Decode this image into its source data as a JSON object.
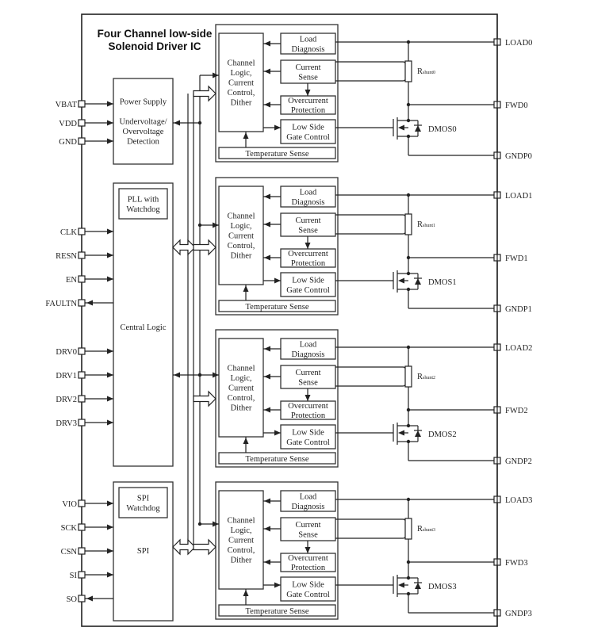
{
  "title": [
    "Four Channel low-side",
    "Solenoid Driver IC"
  ],
  "blocks": {
    "power_supply": [
      "Power Supply",
      "",
      "Undervoltage/",
      "Overvoltage",
      "Detection"
    ],
    "pll": [
      "PLL with",
      "Watchdog"
    ],
    "central_logic": "Central Logic",
    "spi_watchdog": [
      "SPI",
      "Watchdog"
    ],
    "spi": "SPI"
  },
  "left_pins": [
    {
      "label": "VBAT",
      "dir": "in"
    },
    {
      "label": "VDD",
      "dir": "in"
    },
    {
      "label": "GND",
      "dir": "in"
    },
    {
      "label": "CLK",
      "dir": "in"
    },
    {
      "label": "RESN",
      "dir": "in"
    },
    {
      "label": "EN",
      "dir": "in"
    },
    {
      "label": "FAULTN",
      "dir": "out"
    },
    {
      "label": "DRV0",
      "dir": "in"
    },
    {
      "label": "DRV1",
      "dir": "in"
    },
    {
      "label": "DRV2",
      "dir": "in"
    },
    {
      "label": "DRV3",
      "dir": "in"
    },
    {
      "label": "VIO",
      "dir": "in"
    },
    {
      "label": "SCK",
      "dir": "in"
    },
    {
      "label": "CSN",
      "dir": "in"
    },
    {
      "label": "SI",
      "dir": "in"
    },
    {
      "label": "SO",
      "dir": "out"
    }
  ],
  "channel_blocks": {
    "logic": [
      "Channel",
      "Logic,",
      "Current",
      "Control,",
      "Dither"
    ],
    "load_diag": [
      "Load",
      "Diagnosis"
    ],
    "current_sense": [
      "Current",
      "Sense"
    ],
    "overcurrent": [
      "Overcurrent",
      "Protection"
    ],
    "gate_control": [
      "Low Side",
      "Gate Control"
    ],
    "temp_sense": "Temperature Sense"
  },
  "channels": [
    {
      "load": "LOAD0",
      "fwd": "FWD0",
      "gndp": "GNDP0",
      "dmos": "DMOS0",
      "rshunt": "R",
      "rshunt_sub": "shunt0"
    },
    {
      "load": "LOAD1",
      "fwd": "FWD1",
      "gndp": "GNDP1",
      "dmos": "DMOS1",
      "rshunt": "R",
      "rshunt_sub": "shunt1"
    },
    {
      "load": "LOAD2",
      "fwd": "FWD2",
      "gndp": "GNDP2",
      "dmos": "DMOS2",
      "rshunt": "R",
      "rshunt_sub": "shunt2"
    },
    {
      "load": "LOAD3",
      "fwd": "FWD3",
      "gndp": "GNDP3",
      "dmos": "DMOS3",
      "rshunt": "R",
      "rshunt_sub": "shunt3"
    }
  ]
}
